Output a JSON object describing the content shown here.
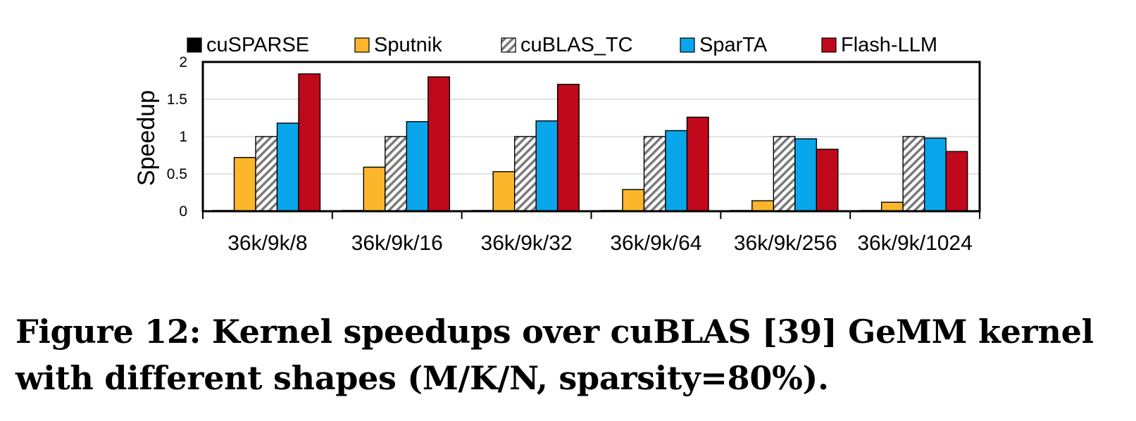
{
  "chart_data": {
    "type": "bar",
    "categories": [
      "36k/9k/8",
      "36k/9k/16",
      "36k/9k/32",
      "36k/9k/64",
      "36k/9k/256",
      "36k/9k/1024"
    ],
    "series": [
      {
        "name": "cuSPARSE",
        "color": "#000000",
        "pattern": "solid",
        "values": [
          0.01,
          0.01,
          0.01,
          0.01,
          0.01,
          0.01
        ]
      },
      {
        "name": "Sputnik",
        "color": "#FBB62B",
        "pattern": "solid",
        "values": [
          0.72,
          0.59,
          0.53,
          0.29,
          0.14,
          0.12
        ]
      },
      {
        "name": "cuBLAS_TC",
        "color": "#9A9A9A",
        "pattern": "hatch",
        "values": [
          1.0,
          1.0,
          1.0,
          1.0,
          1.0,
          1.0
        ]
      },
      {
        "name": "SparTA",
        "color": "#09A6EB",
        "pattern": "solid",
        "values": [
          1.18,
          1.2,
          1.21,
          1.08,
          0.97,
          0.98
        ]
      },
      {
        "name": "Flash-LLM",
        "color": "#C0091A",
        "pattern": "solid",
        "values": [
          1.84,
          1.8,
          1.7,
          1.26,
          0.83,
          0.8
        ]
      }
    ],
    "ylabel": "Speedup",
    "xlabel": "",
    "ylim": [
      0,
      2
    ],
    "yticks": [
      "0",
      "0.5",
      "1",
      "1.5",
      "2"
    ],
    "grid": true,
    "legend_position": "top"
  },
  "caption": "Figure 12: Kernel speedups over cuBLAS [39] GeMM kernel with different shapes (M/K/N, sparsity=80%)."
}
